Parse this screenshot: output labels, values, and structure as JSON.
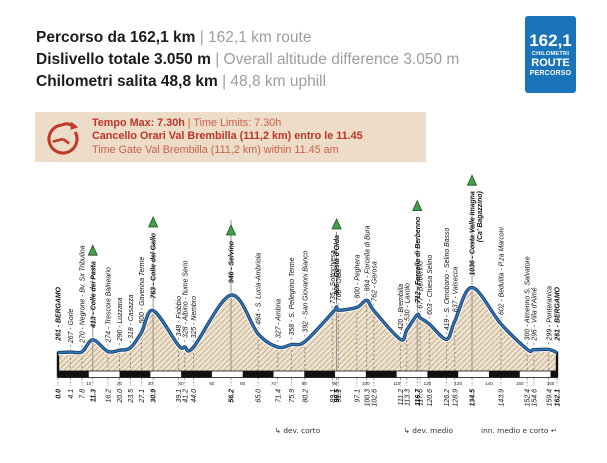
{
  "header": {
    "stats": [
      {
        "it": "Percorso da 162,1 km ",
        "en": "| 162,1 km route"
      },
      {
        "it": "Dislivello totale 3.050 m ",
        "en": "| Overall altitude difference 3.050 m"
      },
      {
        "it": "Chilometri salita 48,8 km ",
        "en": "| 48,8 km uphill"
      }
    ]
  },
  "badge": {
    "value": "162,1",
    "line2": "CHILOMETRI",
    "line3": "ROUTE",
    "line4": "PERCORSO",
    "color": "#1b74b9"
  },
  "time_box": {
    "line1_bold": "Tempo Max: 7.30h ",
    "line1_rest": "| Time Limits: 7.30h",
    "line2": "Cancello Orari Val Brembilla (111,2 km) entro le 11.45",
    "line3": "Time Gate Val Brembilla (111,2 km) within 11.45 am",
    "bg_color": "#edddc8",
    "accent_color": "#bc3526"
  },
  "chart_data": {
    "type": "area",
    "title": "Elevation profile Bergamo - Bergamo 162,1 km",
    "x_unit": "km",
    "y_unit": "m",
    "x_range": [
      0,
      162.1
    ],
    "axis_bar_interval_km": 10,
    "axis_tick_labels_km": [
      10,
      20,
      30,
      40,
      50,
      60,
      70,
      80,
      90,
      100,
      110,
      120,
      130,
      140,
      150,
      160
    ],
    "grid": false,
    "legend": false,
    "elevation_profile": [
      {
        "km": 0.0,
        "elev": 261,
        "label": "261 - BERGAMO",
        "bold": true,
        "summit": false,
        "edge": true
      },
      {
        "km": 4.1,
        "elev": 267,
        "label": "267 - Gorle"
      },
      {
        "km": 7.8,
        "elev": 270,
        "label": "270 - Negrone - Bv. Sx Tribulina"
      },
      {
        "km": 11.3,
        "elev": 413,
        "label": "413 - Colle dei Pasta",
        "bold": true,
        "summit": true
      },
      {
        "km": 16.2,
        "elev": 274,
        "label": "274 - Trescore Balneario"
      },
      {
        "km": 20.0,
        "elev": 290,
        "label": "290 - Luzzana"
      },
      {
        "km": 23.5,
        "elev": 318,
        "label": "318 - Casazza"
      },
      {
        "km": 27.1,
        "elev": 500,
        "label": "500 - Gaverina Terme"
      },
      {
        "km": 30.9,
        "elev": 763,
        "label": "763 - Colle del Gallo",
        "bold": true,
        "summit": true
      },
      {
        "km": 39.1,
        "elev": 348,
        "label": "348 - Fiobbio"
      },
      {
        "km": 41.2,
        "elev": 328,
        "label": "328 - Albino - fiume Serio"
      },
      {
        "km": 44.0,
        "elev": 325,
        "label": "325 - Nembro"
      },
      {
        "km": 56.2,
        "elev": 946,
        "label": "946 - Selvino",
        "bold": true,
        "summit": true
      },
      {
        "km": 65.0,
        "elev": 484,
        "label": "484 - S. Lucia-Ambriola"
      },
      {
        "km": 71.4,
        "elev": 327,
        "label": "327 - Ambria"
      },
      {
        "km": 75.9,
        "elev": 358,
        "label": "358 - S. Pellegrino Terme"
      },
      {
        "km": 80.2,
        "elev": 392,
        "label": "392 - San Giovanni Bianco"
      },
      {
        "km": 89.1,
        "elev": 735,
        "label": "735 - Sottochiesa"
      },
      {
        "km": 90.5,
        "elev": 806,
        "label": "806 - Costa d'Olda",
        "bold": true,
        "summit": true
      },
      {
        "km": 91.1,
        "elev": 766,
        "label": "766 - Olda"
      },
      {
        "km": 97.1,
        "elev": 800,
        "label": "800 - Peghera"
      },
      {
        "km": 100.3,
        "elev": 884,
        "label": "884 - Forcella di Bura"
      },
      {
        "km": 102.6,
        "elev": 762,
        "label": "762 - Gerosa"
      },
      {
        "km": 111.2,
        "elev": 420,
        "label": "420 - Brembilla"
      },
      {
        "km": 113.3,
        "elev": 530,
        "label": "530 - Laxolo"
      },
      {
        "km": 116.7,
        "elev": 712,
        "label": "712 - Forcella di Berbenno",
        "bold": true,
        "summit": true
      },
      {
        "km": 117.6,
        "elev": 677,
        "label": "677 - Berbenno"
      },
      {
        "km": 120.6,
        "elev": 603,
        "label": "603 - Chiesa Selino"
      },
      {
        "km": 126.2,
        "elev": 419,
        "label": "419 - S. Omobono - Selino Basso"
      },
      {
        "km": 128.9,
        "elev": 637,
        "label": "637 - Valsecca"
      },
      {
        "km": 134.5,
        "elev": 1036,
        "label": "1036 - Costa Valle Imagna",
        "label2": "(Ca' Bagazzino)",
        "bold": true,
        "summit": true
      },
      {
        "km": 143.9,
        "elev": 602,
        "label": "602 - Bedulita - P.za Marconi"
      },
      {
        "km": 152.4,
        "elev": 300,
        "label": "300 - Almenno S. Salvatore"
      },
      {
        "km": 154.6,
        "elev": 295,
        "label": "295 - Villa d'Almé"
      },
      {
        "km": 159.4,
        "elev": 299,
        "label": "299 - Ponteranica"
      },
      {
        "km": 162.1,
        "elev": 261,
        "label": "261 - BERGAMO",
        "bold": true,
        "edge": true
      }
    ],
    "annotations": [
      {
        "text": "↳ dev. corto",
        "km": 71.4,
        "align": "start"
      },
      {
        "text": "↳ dev. medio",
        "km": 113.3,
        "align": "start"
      },
      {
        "text": "inn. medio e corto ↵",
        "km": 162.1,
        "align": "end"
      }
    ],
    "colors": {
      "line": "#2e75b6",
      "line_outline": "#1c3a5e",
      "line_glow": "#ffffff",
      "hatch_bg": "#ede3d0",
      "hatch_line": "#c9ae8c",
      "leader": "#6b6b6b",
      "axis": "#111111",
      "summit_marker": "#44a04b",
      "summit_marker_edge": "#1e4d28",
      "text": "#111111"
    }
  }
}
